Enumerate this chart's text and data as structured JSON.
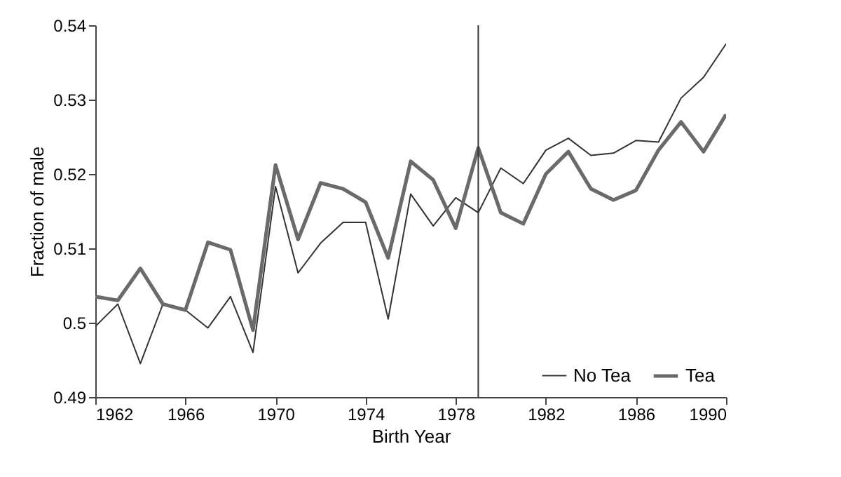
{
  "chart_data": {
    "type": "line",
    "xlabel": "Birth Year",
    "ylabel": "Fraction of male",
    "x": [
      1962,
      1963,
      1964,
      1965,
      1966,
      1967,
      1968,
      1969,
      1970,
      1971,
      1972,
      1973,
      1974,
      1975,
      1976,
      1977,
      1978,
      1979,
      1980,
      1981,
      1982,
      1983,
      1984,
      1985,
      1986,
      1987,
      1988,
      1989,
      1990
    ],
    "series": [
      {
        "name": "No Tea",
        "color": "#333333",
        "values": [
          0.4995,
          0.5025,
          0.4945,
          0.5025,
          0.5017,
          0.4993,
          0.5035,
          0.496,
          0.5183,
          0.5067,
          0.5107,
          0.5135,
          0.5135,
          0.5005,
          0.5173,
          0.513,
          0.5168,
          0.5148,
          0.5208,
          0.5187,
          0.5232,
          0.5248,
          0.5225,
          0.5228,
          0.5245,
          0.5243,
          0.5302,
          0.533,
          0.5375
        ]
      },
      {
        "name": "Tea",
        "color": "#6a6a6a",
        "values": [
          0.5035,
          0.503,
          0.5073,
          0.5025,
          0.5017,
          0.5108,
          0.5098,
          0.499,
          0.5212,
          0.5112,
          0.5188,
          0.518,
          0.5162,
          0.5087,
          0.5217,
          0.5192,
          0.5127,
          0.5235,
          0.5148,
          0.5133,
          0.52,
          0.523,
          0.518,
          0.5165,
          0.5178,
          0.5232,
          0.527,
          0.523,
          0.528
        ]
      }
    ],
    "xlim": [
      1962,
      1990
    ],
    "xticks": [
      1962,
      1966,
      1970,
      1974,
      1978,
      1982,
      1986,
      1990
    ],
    "ylim": [
      0.49,
      0.54
    ],
    "yticks": [
      0.49,
      0.5,
      0.51,
      0.52,
      0.53,
      0.54
    ],
    "ref_lines": [
      {
        "axis": "x",
        "value": 1979,
        "color": "#333333"
      }
    ],
    "grid": false,
    "legend": "bottom right",
    "marker": "none",
    "line_style": "solid"
  }
}
